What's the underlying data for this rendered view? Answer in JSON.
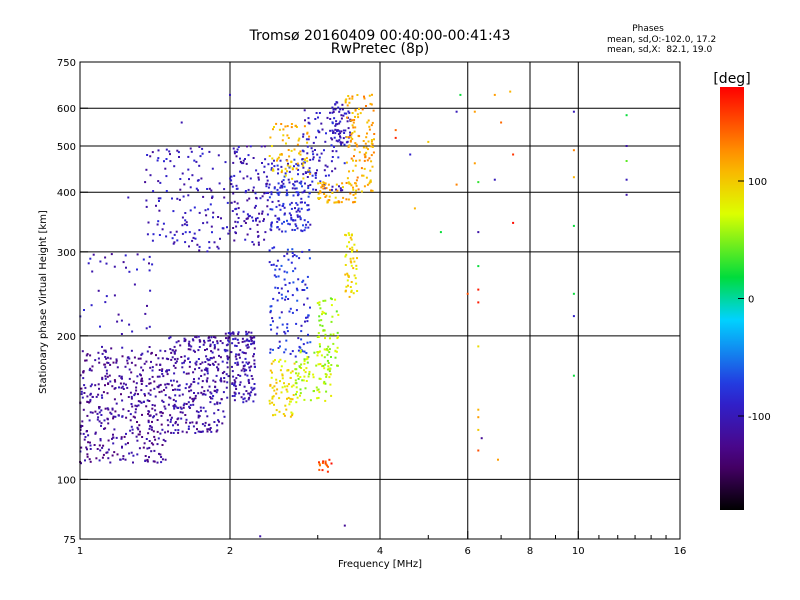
{
  "chart_data": {
    "type": "scatter",
    "title": "Tromsø 20160409 00:40:00-00:41:43",
    "subtitle": "RwPretec (8p)",
    "stats": {
      "header": "Phases",
      "line1": "mean, sd,O:-102.0, 17.2",
      "line2": "mean, sd,X:  82.1, 19.0"
    },
    "xlabel": "Frequency [MHz]",
    "ylabel": "Stationary phase Virtual Height [km]",
    "x_scale": "log",
    "y_scale": "log",
    "xlim": [
      1,
      16
    ],
    "ylim": [
      75,
      750
    ],
    "x_ticks": [
      1,
      2,
      4,
      6,
      8,
      10,
      16
    ],
    "x_tick_labels": [
      "1",
      "2",
      "4",
      "6",
      "8",
      "10",
      "16"
    ],
    "x_grid": [
      2,
      4,
      6,
      8,
      10
    ],
    "y_ticks": [
      75,
      100,
      200,
      300,
      400,
      500,
      600,
      750
    ],
    "y_tick_labels": [
      "75",
      "100",
      "200",
      "300",
      "400",
      "500",
      "600",
      "750"
    ],
    "y_grid": [
      100,
      200,
      300,
      400,
      500,
      600
    ],
    "grid": true,
    "colorbar": {
      "label": "[deg]",
      "range": [
        -180,
        180
      ],
      "ticks": [
        100,
        0,
        -100
      ],
      "tick_labels": [
        "100",
        "0",
        "-100"
      ]
    },
    "series": [
      {
        "f": [
          1.0,
          1.5
        ],
        "hmin": 108,
        "hmax": 190,
        "phase": -118,
        "n": 420
      },
      {
        "f": [
          1.5,
          1.95
        ],
        "hmin": 125,
        "hmax": 200,
        "phase": -112,
        "n": 300
      },
      {
        "f": [
          1.95,
          2.25
        ],
        "hmin": 145,
        "hmax": 205,
        "phase": -108,
        "n": 160
      },
      {
        "f": [
          1.0,
          1.4
        ],
        "hmin": 200,
        "hmax": 300,
        "phase": -100,
        "n": 40
      },
      {
        "f": [
          1.35,
          2.0
        ],
        "hmin": 300,
        "hmax": 500,
        "phase": -100,
        "n": 140
      },
      {
        "f": [
          2.0,
          2.4
        ],
        "hmin": 310,
        "hmax": 500,
        "phase": -105,
        "n": 120
      },
      {
        "f": [
          2.4,
          2.9
        ],
        "hmin": 330,
        "hmax": 470,
        "phase": -85,
        "n": 160
      },
      {
        "f": [
          2.8,
          3.4
        ],
        "hmin": 400,
        "hmax": 600,
        "phase": -95,
        "n": 110
      },
      {
        "f": [
          3.2,
          3.5
        ],
        "hmin": 500,
        "hmax": 620,
        "phase": -100,
        "n": 50
      },
      {
        "f": [
          2.4,
          2.9
        ],
        "hmin": 180,
        "hmax": 310,
        "phase": -80,
        "n": 120
      },
      {
        "f": [
          2.4,
          2.7
        ],
        "hmin": 135,
        "hmax": 180,
        "phase": 90,
        "n": 70
      },
      {
        "f": [
          2.7,
          3.2
        ],
        "hmin": 145,
        "hmax": 190,
        "phase": 65,
        "n": 90
      },
      {
        "f": [
          3.0,
          3.3
        ],
        "hmin": 170,
        "hmax": 240,
        "phase": 60,
        "n": 60
      },
      {
        "f": [
          3.4,
          3.6
        ],
        "hmin": 240,
        "hmax": 330,
        "phase": 95,
        "n": 50
      },
      {
        "f": [
          2.4,
          2.9
        ],
        "hmin": 420,
        "hmax": 560,
        "phase": 105,
        "n": 70
      },
      {
        "f": [
          3.0,
          3.6
        ],
        "hmin": 380,
        "hmax": 420,
        "phase": 110,
        "n": 60
      },
      {
        "f": [
          3.4,
          3.9
        ],
        "hmin": 400,
        "hmax": 650,
        "phase": 115,
        "n": 120
      },
      {
        "f": [
          3.0,
          3.2
        ],
        "hmin": 103,
        "hmax": 110,
        "phase": 155,
        "n": 15
      }
    ],
    "sparse_points": [
      {
        "x": 2.0,
        "y": 640,
        "phase": -100
      },
      {
        "x": 2.3,
        "y": 76,
        "phase": -110
      },
      {
        "x": 3.4,
        "y": 80,
        "phase": -120
      },
      {
        "x": 1.25,
        "y": 390,
        "phase": -100
      },
      {
        "x": 1.6,
        "y": 560,
        "phase": -105
      },
      {
        "x": 4.3,
        "y": 540,
        "phase": 140
      },
      {
        "x": 4.3,
        "y": 520,
        "phase": 165
      },
      {
        "x": 4.6,
        "y": 480,
        "phase": -90
      },
      {
        "x": 4.7,
        "y": 370,
        "phase": 110
      },
      {
        "x": 5.0,
        "y": 510,
        "phase": 100
      },
      {
        "x": 5.3,
        "y": 330,
        "phase": 20
      },
      {
        "x": 5.7,
        "y": 590,
        "phase": -100
      },
      {
        "x": 5.7,
        "y": 415,
        "phase": 130
      },
      {
        "x": 5.8,
        "y": 640,
        "phase": 20
      },
      {
        "x": 6.2,
        "y": 590,
        "phase": 120
      },
      {
        "x": 6.0,
        "y": 245,
        "phase": 150
      },
      {
        "x": 6.2,
        "y": 460,
        "phase": 120
      },
      {
        "x": 6.3,
        "y": 420,
        "phase": 30
      },
      {
        "x": 6.3,
        "y": 330,
        "phase": -110
      },
      {
        "x": 6.3,
        "y": 280,
        "phase": 20
      },
      {
        "x": 6.3,
        "y": 250,
        "phase": 170
      },
      {
        "x": 6.3,
        "y": 235,
        "phase": 170
      },
      {
        "x": 6.3,
        "y": 190,
        "phase": 90
      },
      {
        "x": 6.3,
        "y": 140,
        "phase": 110
      },
      {
        "x": 6.3,
        "y": 135,
        "phase": 120
      },
      {
        "x": 6.3,
        "y": 127,
        "phase": 100
      },
      {
        "x": 6.4,
        "y": 122,
        "phase": -120
      },
      {
        "x": 6.3,
        "y": 115,
        "phase": 150
      },
      {
        "x": 6.8,
        "y": 640,
        "phase": 120
      },
      {
        "x": 6.8,
        "y": 425,
        "phase": -100
      },
      {
        "x": 6.9,
        "y": 110,
        "phase": 120
      },
      {
        "x": 7.0,
        "y": 560,
        "phase": 140
      },
      {
        "x": 7.3,
        "y": 650,
        "phase": 110
      },
      {
        "x": 7.4,
        "y": 480,
        "phase": 160
      },
      {
        "x": 7.4,
        "y": 345,
        "phase": 175
      },
      {
        "x": 9.8,
        "y": 590,
        "phase": -100
      },
      {
        "x": 9.8,
        "y": 490,
        "phase": 130
      },
      {
        "x": 9.8,
        "y": 430,
        "phase": 110
      },
      {
        "x": 9.8,
        "y": 340,
        "phase": 20
      },
      {
        "x": 9.8,
        "y": 245,
        "phase": 20
      },
      {
        "x": 9.8,
        "y": 220,
        "phase": -90
      },
      {
        "x": 9.8,
        "y": 165,
        "phase": 20
      },
      {
        "x": 12.5,
        "y": 580,
        "phase": 20
      },
      {
        "x": 12.5,
        "y": 500,
        "phase": -110
      },
      {
        "x": 12.5,
        "y": 465,
        "phase": 40
      },
      {
        "x": 12.5,
        "y": 425,
        "phase": -100
      },
      {
        "x": 12.5,
        "y": 395,
        "phase": -110
      }
    ]
  }
}
